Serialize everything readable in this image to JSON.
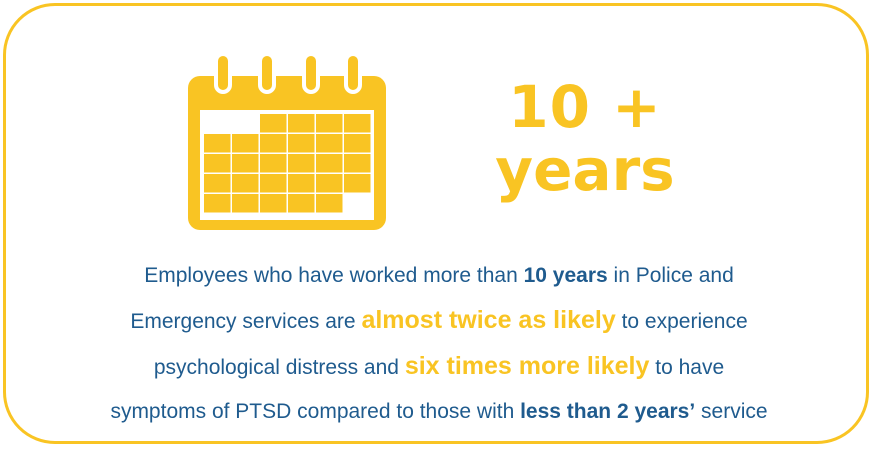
{
  "colors": {
    "accent": "#F9C423",
    "text": "#1F5B8E"
  },
  "icon": "calendar-icon",
  "stat": {
    "line1": "10 +",
    "line2": "years"
  },
  "description": {
    "line1": {
      "a": "Employees who have worked more than ",
      "b": "10 years",
      "c": " in Police and"
    },
    "line2": {
      "a": "Emergency services are ",
      "b": "almost twice as likely",
      "c": " to experience"
    },
    "line3": {
      "a": "psychological distress and ",
      "b": "six times more likely",
      "c": " to have"
    },
    "line4": {
      "a": "symptoms of PTSD compared to those with ",
      "b": "less than 2 years’",
      "c": " service"
    }
  }
}
